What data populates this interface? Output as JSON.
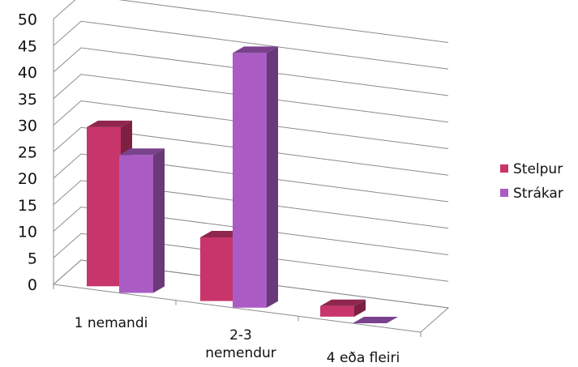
{
  "chart_data": {
    "type": "bar",
    "categories": [
      [
        "1 nemandi"
      ],
      [
        "2-3",
        "nemendur"
      ],
      [
        "4 eða fleiri"
      ]
    ],
    "series": [
      {
        "name": "Stelpur",
        "values": [
          30,
          12,
          2
        ],
        "color": "#c8356b"
      },
      {
        "name": "Strákar",
        "values": [
          26,
          48,
          0
        ],
        "color": "#aa5cc4"
      }
    ],
    "yticks": [
      0,
      5,
      10,
      15,
      20,
      25,
      30,
      35,
      40,
      45,
      50
    ],
    "ylim": [
      0,
      50
    ],
    "grid": true,
    "legend_position": "right",
    "three_d": true
  }
}
